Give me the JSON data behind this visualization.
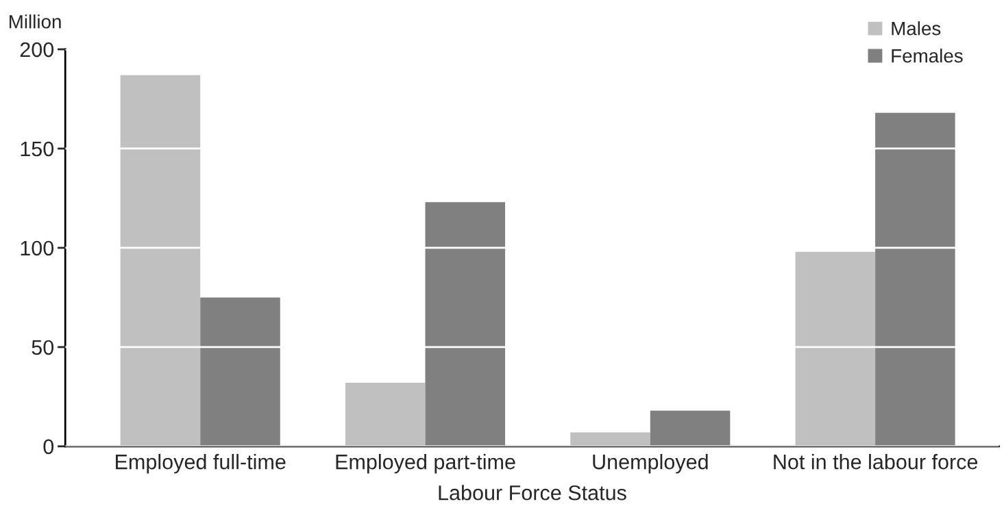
{
  "chart_data": {
    "type": "bar",
    "xlabel": "Labour Force Status",
    "ylabel": "Million",
    "categories": [
      "Employed full-time",
      "Employed part-time",
      "Unemployed",
      "Not in the labour force"
    ],
    "series": [
      {
        "name": "Males",
        "color": "#c0c0c0",
        "values": [
          187,
          32,
          7,
          98
        ]
      },
      {
        "name": "Females",
        "color": "#808080",
        "values": [
          75,
          123,
          18,
          168
        ]
      }
    ],
    "ylim": [
      0,
      200
    ],
    "yticks": [
      0,
      50,
      100,
      150,
      200
    ],
    "grid": "y",
    "legend": "top right"
  }
}
